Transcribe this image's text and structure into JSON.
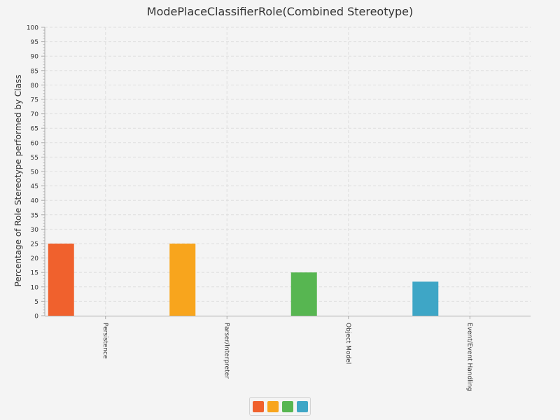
{
  "chart_data": {
    "type": "bar",
    "title": "ModePlaceClassifierRole(Combined Stereotype)",
    "xlabel": "",
    "ylabel": "Percentage of Role Stereotype performed by Class",
    "categories": [
      "Persistence",
      "Parser/Interpreter",
      "Object Model",
      "Event/Event Handling"
    ],
    "values": [
      25,
      25,
      15,
      11.8
    ],
    "colors": [
      "#f0612d",
      "#f8a51d",
      "#57b651",
      "#3ea6c6"
    ],
    "ylim": [
      0,
      100
    ],
    "yticks": [
      0,
      5,
      10,
      15,
      20,
      25,
      30,
      35,
      40,
      45,
      50,
      55,
      60,
      65,
      70,
      75,
      80,
      85,
      90,
      95,
      100
    ],
    "grid": true,
    "legend": {
      "placement": "bottom-center",
      "entries": [
        "",
        "",
        "",
        ""
      ]
    }
  }
}
